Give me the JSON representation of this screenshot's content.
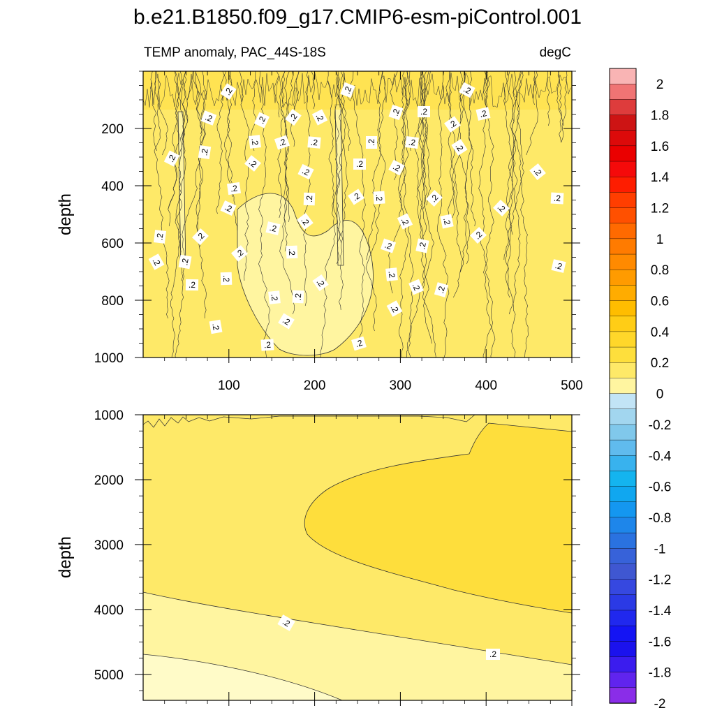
{
  "chart_data": {
    "type": "contour",
    "title": "b.e21.B1850.f09_g17.CMIP6-esm-piControl.001",
    "variable_label": "TEMP anomaly, PAC_44S-18S",
    "units_label": "degC",
    "xlabel": "",
    "ylabel": "depth",
    "xlim": [
      0,
      500
    ],
    "x_ticks": [
      100,
      200,
      300,
      400,
      500
    ],
    "contour_label": ".2",
    "panels": [
      {
        "name": "upper",
        "ylim": [
          1000,
          0
        ],
        "y_ticks": [
          200,
          400,
          600,
          800,
          1000
        ],
        "show_x_tick_labels": true
      },
      {
        "name": "lower",
        "ylim": [
          5400,
          1000
        ],
        "y_ticks": [
          1000,
          2000,
          3000,
          4000,
          5000
        ],
        "show_x_tick_labels": false
      }
    ],
    "colorbar": {
      "levels": [
        -2,
        -1.9,
        -1.8,
        -1.7,
        -1.6,
        -1.5,
        -1.4,
        -1.3,
        -1.2,
        -1.1,
        -1,
        -0.9,
        -0.8,
        -0.7,
        -0.6,
        -0.5,
        -0.4,
        -0.3,
        -0.2,
        -0.1,
        0,
        0.1,
        0.2,
        0.3,
        0.4,
        0.5,
        0.6,
        0.7,
        0.8,
        0.9,
        1,
        1.1,
        1.2,
        1.3,
        1.4,
        1.5,
        1.6,
        1.7,
        1.8,
        1.9,
        2
      ],
      "labels": [
        "2",
        "1.8",
        "1.6",
        "1.4",
        "1.2",
        "1",
        "0.8",
        "0.6",
        "0.4",
        "0.2",
        "0",
        "-0.2",
        "-0.4",
        "-0.6",
        "-0.8",
        "-1",
        "-1.2",
        "-1.4",
        "-1.6",
        "-1.8",
        "-2"
      ],
      "colors_top_to_bottom": [
        "#f9b4b4",
        "#f07474",
        "#de3c3c",
        "#cd1414",
        "#dc0a0a",
        "#ea0000",
        "#f50a0a",
        "#fe1d00",
        "#ff3e00",
        "#ff5000",
        "#ff6a00",
        "#ff7b00",
        "#ff8a00",
        "#ff9b00",
        "#ffac00",
        "#ffbd00",
        "#ffcd16",
        "#ffd72a",
        "#fedf3c",
        "#fee968",
        "#fff5a0",
        "#c2e4f6",
        "#a2d6ef",
        "#80c8eb",
        "#60bbee",
        "#38b2ee",
        "#14b4ef",
        "#10a7f0",
        "#1497f0",
        "#1e86ea",
        "#2a72e0",
        "#3762d9",
        "#3f57d1",
        "#3648e0",
        "#2b3ae5",
        "#2028ee",
        "#1414f4",
        "#1b12ed",
        "#3b1cee",
        "#6024ee",
        "#8a2de8"
      ]
    }
  }
}
